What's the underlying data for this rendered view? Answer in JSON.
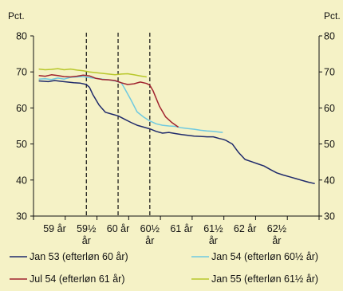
{
  "chart_data": {
    "type": "line",
    "y_unit_left": "Pct.",
    "y_unit_right": "Pct.",
    "ylim": [
      30,
      80
    ],
    "yticks": [
      30,
      40,
      50,
      60,
      70,
      80
    ],
    "x_tick_labels": [
      {
        "x": 59.0,
        "lines": [
          "59 år"
        ]
      },
      {
        "x": 59.5,
        "lines": [
          "59½",
          "år"
        ]
      },
      {
        "x": 60.0,
        "lines": [
          "60 år"
        ]
      },
      {
        "x": 60.5,
        "lines": [
          "60½",
          "år"
        ]
      },
      {
        "x": 61.0,
        "lines": [
          "61 år"
        ]
      },
      {
        "x": 61.5,
        "lines": [
          "61½",
          "år"
        ]
      },
      {
        "x": 62.0,
        "lines": [
          "62 år"
        ]
      },
      {
        "x": 62.5,
        "lines": [
          "62½",
          "år"
        ]
      }
    ],
    "xlim": [
      58.667,
      63.167
    ],
    "vertical_markers": [
      59.5,
      60.0,
      60.5
    ],
    "grid": false,
    "legend_position": "bottom",
    "series": [
      {
        "name": "Jan 53 (efterløn 60 år)",
        "color": "#1f2a6b",
        "x": [
          58.75,
          58.9,
          59.0,
          59.1,
          59.2,
          59.3,
          59.4,
          59.5,
          59.55,
          59.6,
          59.7,
          59.8,
          59.9,
          60.0,
          60.1,
          60.2,
          60.3,
          60.4,
          60.5,
          60.6,
          60.7,
          60.8,
          60.9,
          61.0,
          61.1,
          61.2,
          61.3,
          61.4,
          61.5,
          61.6,
          61.65,
          61.7,
          61.8,
          61.9,
          62.0,
          62.1,
          62.2,
          62.3,
          62.4,
          62.5,
          62.6,
          62.7,
          62.8,
          62.9,
          63.0,
          63.1
        ],
        "y": [
          67.5,
          67.3,
          67.6,
          67.4,
          67.2,
          67.0,
          66.9,
          66.5,
          65.7,
          63.8,
          60.8,
          58.8,
          58.3,
          57.8,
          56.9,
          56.0,
          55.2,
          54.7,
          54.2,
          53.5,
          53.0,
          53.2,
          52.9,
          52.6,
          52.4,
          52.2,
          52.1,
          52.0,
          52.0,
          51.5,
          51.3,
          51.0,
          50.0,
          47.6,
          45.7,
          45.1,
          44.5,
          43.9,
          42.9,
          42.0,
          41.4,
          40.9,
          40.4,
          39.9,
          39.4,
          39.0
        ]
      },
      {
        "name": "Jan 54 (efterløn 60½ år)",
        "color": "#6ec9e0",
        "x": [
          58.75,
          58.85,
          58.95,
          59.05,
          59.15,
          59.25,
          59.35,
          59.45,
          59.55,
          59.65,
          59.75,
          59.85,
          59.95,
          60.05,
          60.1,
          60.2,
          60.3,
          60.4,
          60.5,
          60.6,
          60.7,
          60.8,
          60.9,
          61.0,
          61.1,
          61.2,
          61.3,
          61.4,
          61.5,
          61.6,
          61.65
        ],
        "y": [
          68.0,
          68.1,
          67.9,
          68.3,
          68.0,
          68.5,
          68.6,
          68.7,
          68.4,
          68.2,
          68.0,
          67.8,
          67.5,
          67.0,
          65.5,
          62.3,
          58.9,
          57.5,
          56.4,
          55.6,
          55.2,
          55.0,
          54.9,
          54.5,
          54.3,
          54.1,
          53.8,
          53.6,
          53.5,
          53.3,
          53.2
        ]
      },
      {
        "name": "Jul 54 (efterløn 61 år)",
        "color": "#a0232e",
        "x": [
          58.75,
          58.85,
          58.95,
          59.05,
          59.15,
          59.25,
          59.35,
          59.45,
          59.55,
          59.65,
          59.75,
          59.85,
          59.95,
          60.05,
          60.15,
          60.25,
          60.35,
          60.45,
          60.5,
          60.55,
          60.65,
          60.75,
          60.85,
          60.95
        ],
        "y": [
          69.0,
          68.8,
          69.2,
          69.0,
          68.7,
          68.6,
          68.8,
          69.1,
          68.9,
          68.2,
          67.9,
          67.8,
          67.6,
          67.0,
          66.5,
          66.7,
          67.2,
          66.8,
          66.3,
          64.8,
          60.5,
          57.5,
          55.9,
          54.7
        ]
      },
      {
        "name": "Jan 55 (efterløn 61½ år)",
        "color": "#b8c72a",
        "x": [
          58.75,
          58.85,
          58.95,
          59.05,
          59.15,
          59.25,
          59.35,
          59.45,
          59.55,
          59.65,
          59.75,
          59.85,
          59.95,
          60.05,
          60.15,
          60.25,
          60.35,
          60.45
        ],
        "y": [
          70.8,
          70.6,
          70.7,
          70.9,
          70.6,
          70.8,
          70.5,
          70.3,
          70.0,
          69.8,
          69.6,
          69.4,
          69.2,
          69.4,
          69.5,
          69.2,
          68.9,
          68.6
        ]
      }
    ]
  }
}
